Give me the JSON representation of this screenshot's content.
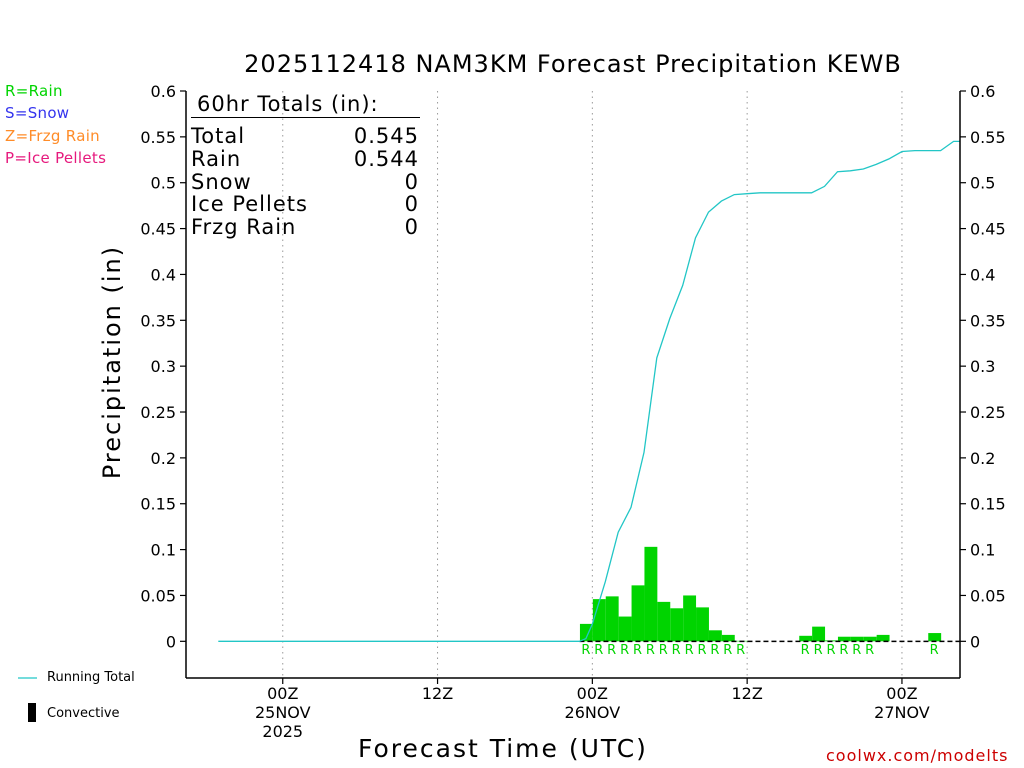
{
  "legend": {
    "rain": {
      "label": "R=Rain",
      "color": "#00d400"
    },
    "snow": {
      "label": "S=Snow",
      "color": "#3333ee"
    },
    "frzg": {
      "label": "Z=Frzg Rain",
      "color": "#ff8c28"
    },
    "ice": {
      "label": "P=Ice Pellets",
      "color": "#e6197d"
    }
  },
  "totals": {
    "heading": "60hr Totals (in):",
    "rows": [
      {
        "label": "Total",
        "value": "0.545"
      },
      {
        "label": "Rain",
        "value": "0.544"
      },
      {
        "label": "Snow",
        "value": "0"
      },
      {
        "label": "Ice Pellets",
        "value": "0"
      },
      {
        "label": "Frzg Rain",
        "value": "0"
      }
    ]
  },
  "bottom_key": {
    "running_total": "Running Total",
    "convective": "Convective"
  },
  "credit": "coolwx.com/modelts",
  "colors": {
    "bar": "#00d400",
    "running_line": "#22c6c6",
    "rain_marker": "#00d400"
  },
  "chart_data": {
    "type": "bar",
    "title": "2025112418 NAM3KM Forecast Precipitation KEWB",
    "xlabel": "Forecast Time (UTC)",
    "ylabel": "Precipitation (in)",
    "ylim": [
      -0.04,
      0.6
    ],
    "xlim_hours": [
      -7.5,
      52.5
    ],
    "yticks": [
      0,
      0.05,
      0.1,
      0.15,
      0.2,
      0.25,
      0.3,
      0.35,
      0.4,
      0.45,
      0.5,
      0.55,
      0.6
    ],
    "ytick_labels": [
      "0",
      "0.05",
      "0.1",
      "0.15",
      "0.2",
      "0.25",
      "0.3",
      "0.35",
      "0.4",
      "0.45",
      "0.5",
      "0.55",
      "0.6"
    ],
    "xticks": [
      {
        "hour": 0,
        "lines": [
          "00Z",
          "25NOV",
          "2025"
        ]
      },
      {
        "hour": 12,
        "lines": [
          "12Z"
        ]
      },
      {
        "hour": 24,
        "lines": [
          "00Z",
          "26NOV"
        ]
      },
      {
        "hour": 36,
        "lines": [
          "12Z"
        ]
      },
      {
        "hour": 48,
        "lines": [
          "00Z",
          "27NOV"
        ]
      }
    ],
    "hourly_precip": {
      "hours": [
        24,
        25,
        26,
        27,
        28,
        29,
        30,
        31,
        32,
        33,
        34,
        35,
        36,
        41,
        42,
        43,
        44,
        45,
        46,
        47,
        51
      ],
      "values": [
        0.019,
        0.046,
        0.049,
        0.027,
        0.061,
        0.103,
        0.043,
        0.036,
        0.05,
        0.037,
        0.012,
        0.007,
        0.0005,
        0.006,
        0.016,
        0.001,
        0.005,
        0.005,
        0.005,
        0.007,
        0.009
      ]
    },
    "running_total": {
      "hours": [
        -5,
        23,
        23.5,
        24,
        25,
        26,
        27,
        28,
        29,
        30,
        31,
        32,
        33,
        34,
        35,
        36,
        37,
        38,
        39,
        40,
        41,
        42,
        43,
        44,
        45,
        46,
        47,
        48,
        49,
        50,
        51,
        52,
        52.5
      ],
      "values": [
        0,
        0,
        0.003,
        0.019,
        0.065,
        0.119,
        0.146,
        0.206,
        0.309,
        0.352,
        0.388,
        0.44,
        0.468,
        0.48,
        0.487,
        0.488,
        0.489,
        0.489,
        0.489,
        0.489,
        0.489,
        0.496,
        0.512,
        0.513,
        0.515,
        0.52,
        0.526,
        0.534,
        0.535,
        0.535,
        0.535,
        0.545,
        0.545
      ]
    },
    "precip_type_markers": {
      "symbol": "R",
      "hours": [
        24,
        25,
        26,
        27,
        28,
        29,
        30,
        31,
        32,
        33,
        34,
        35,
        36,
        41,
        42,
        43,
        44,
        45,
        46,
        51
      ]
    }
  }
}
